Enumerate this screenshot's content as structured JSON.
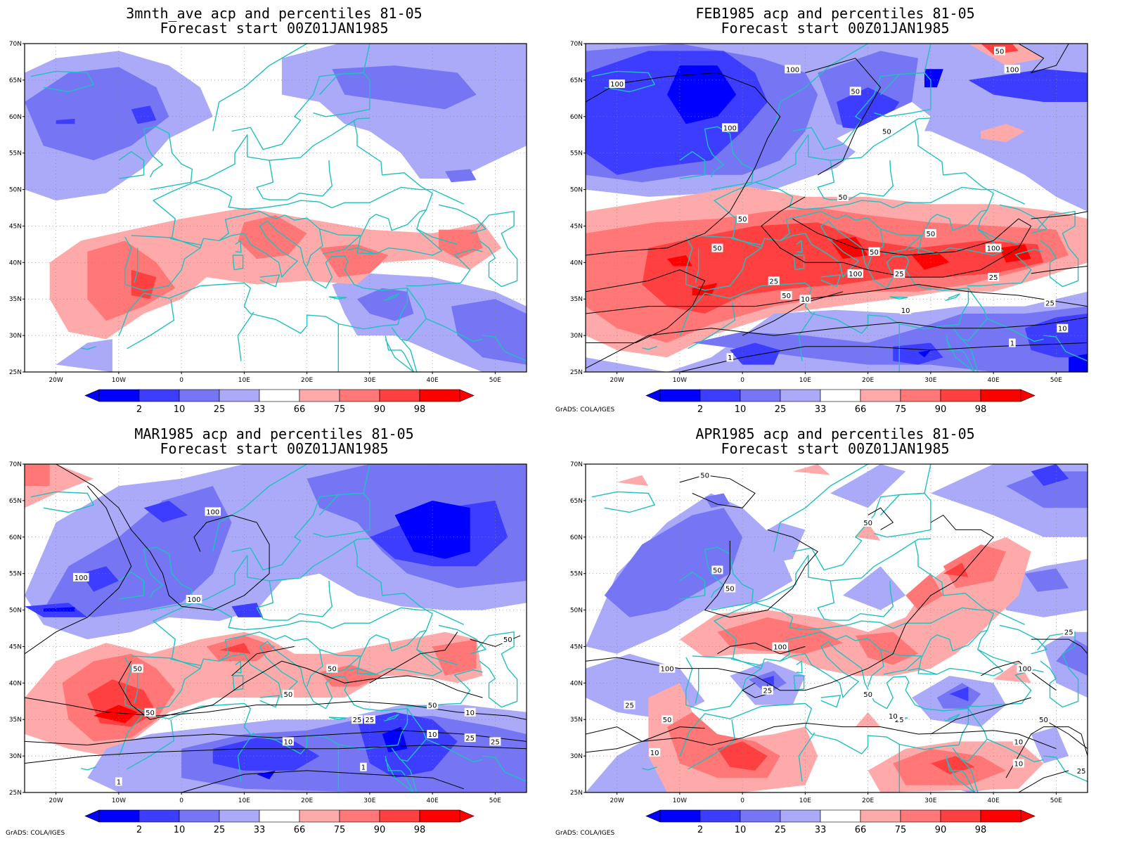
{
  "panels": [
    {
      "id": "p1",
      "title": "3mnth_ave acp and percentiles 81-05",
      "subtitle": "Forecast start 00Z01JAN1985",
      "credit": ""
    },
    {
      "id": "p2",
      "title": "FEB1985 acp and percentiles 81-05",
      "subtitle": "Forecast start 00Z01JAN1985",
      "credit": "GrADS: COLA/IGES"
    },
    {
      "id": "p3",
      "title": "MAR1985 acp and percentiles 81-05",
      "subtitle": "Forecast start 00Z01JAN1985",
      "credit": "GrADS: COLA/IGES"
    },
    {
      "id": "p4",
      "title": "APR1985 acp and percentiles 81-05",
      "subtitle": "Forecast start 00Z01JAN1985",
      "credit": "GrADS: COLA/IGES"
    }
  ],
  "lat_labels": [
    "70N",
    "65N",
    "60N",
    "55N",
    "50N",
    "45N",
    "40N",
    "35N",
    "30N",
    "25N"
  ],
  "lon_labels": [
    "20W",
    "10W",
    "0",
    "10E",
    "20E",
    "30E",
    "40E",
    "50E"
  ],
  "colorbar": {
    "labels": [
      "2",
      "10",
      "25",
      "33",
      "66",
      "75",
      "90",
      "98"
    ],
    "colors": [
      "#0000ff",
      "#3d3dff",
      "#7676f5",
      "#aaaaf8",
      "#ffffff",
      "#ffaaaa",
      "#ff7777",
      "#ff4040",
      "#ff0000"
    ]
  },
  "colors": {
    "coast": "#20c0c0",
    "contour": "#000000",
    "grid": "#888888"
  },
  "contour_labels": {
    "p2": [
      "100",
      "100",
      "100",
      "50",
      "50",
      "50",
      "100",
      "50",
      "50",
      "100",
      "50",
      "100",
      "50",
      "25",
      "50",
      "25",
      "25",
      "50",
      "25",
      "10",
      "10",
      "10",
      "1",
      "1"
    ],
    "p3": [
      "100",
      "100",
      "50",
      "100",
      "50",
      "50",
      "50",
      "50",
      "25",
      "10",
      "25",
      "10",
      "25",
      "1",
      "1",
      "50",
      "10",
      "25"
    ],
    "p4": [
      "50",
      "50",
      "50",
      "50",
      "100",
      "100",
      "25",
      "50",
      "25",
      "25",
      "10",
      "10",
      "50",
      "100",
      "50",
      "25",
      "10",
      "25",
      "10"
    ]
  }
}
